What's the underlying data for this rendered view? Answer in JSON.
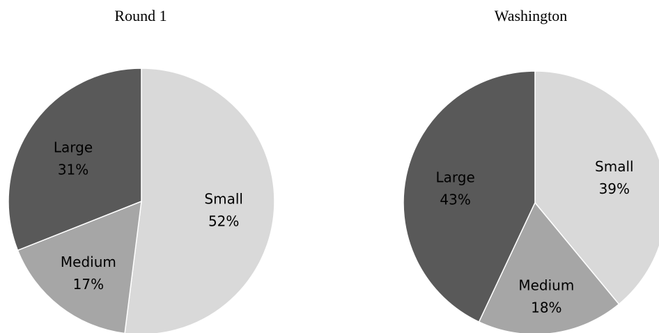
{
  "chart_data": [
    {
      "type": "pie",
      "title": "Round 1",
      "slices": [
        {
          "label": "Small",
          "value": 52,
          "pct_text": "52%",
          "color": "#d9d9d9"
        },
        {
          "label": "Medium",
          "value": 17,
          "pct_text": "17%",
          "color": "#a6a6a6"
        },
        {
          "label": "Large",
          "value": 31,
          "pct_text": "31%",
          "color": "#595959"
        }
      ]
    },
    {
      "type": "pie",
      "title": "Washington",
      "slices": [
        {
          "label": "Small",
          "value": 39,
          "pct_text": "39%",
          "color": "#d9d9d9"
        },
        {
          "label": "Medium",
          "value": 18,
          "pct_text": "18%",
          "color": "#a6a6a6"
        },
        {
          "label": "Large",
          "value": 43,
          "pct_text": "43%",
          "color": "#595959"
        }
      ]
    }
  ]
}
